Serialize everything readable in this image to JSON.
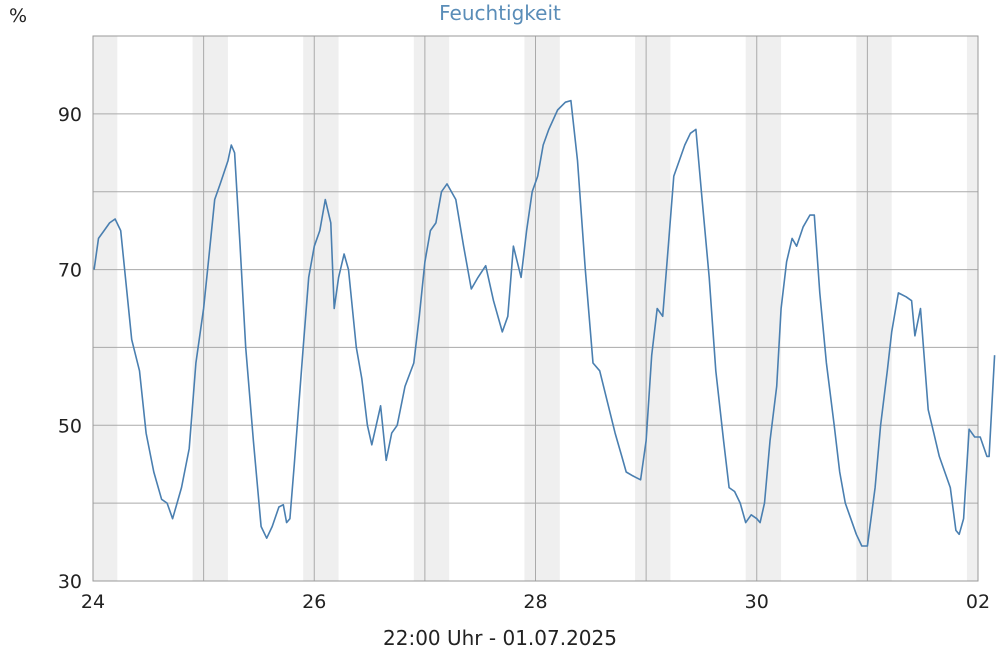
{
  "chart_data": {
    "type": "line",
    "title": "Feuchtigkeit",
    "ylabel": "%",
    "footer": "22:00 Uhr - 01.07.2025",
    "xlim": [
      0,
      8
    ],
    "ylim": [
      30,
      100
    ],
    "x_ticks": [
      {
        "value": 0,
        "label": "24"
      },
      {
        "value": 2,
        "label": "26"
      },
      {
        "value": 4,
        "label": "28"
      },
      {
        "value": 6,
        "label": "30"
      },
      {
        "value": 8,
        "label": "02"
      }
    ],
    "y_ticks": [
      {
        "value": 30,
        "label": "30"
      },
      {
        "value": 50,
        "label": "50"
      },
      {
        "value": 70,
        "label": "70"
      },
      {
        "value": 90,
        "label": "90"
      }
    ],
    "night_bands": [
      [
        0.0,
        0.22
      ],
      [
        0.9,
        1.22
      ],
      [
        1.9,
        2.22
      ],
      [
        2.9,
        3.22
      ],
      [
        3.9,
        4.22
      ],
      [
        4.9,
        5.22
      ],
      [
        5.9,
        6.22
      ],
      [
        6.9,
        7.22
      ],
      [
        7.9,
        8.0
      ]
    ],
    "grid": true,
    "colors": {
      "line": "#4a7fb0",
      "title": "#5a8db8",
      "grid": "#aaaaaa",
      "band": "#efefef"
    },
    "series": [
      {
        "name": "",
        "points": [
          [
            0.01,
            70
          ],
          [
            0.05,
            74
          ],
          [
            0.1,
            75
          ],
          [
            0.15,
            76
          ],
          [
            0.2,
            76.5
          ],
          [
            0.25,
            75
          ],
          [
            0.3,
            68
          ],
          [
            0.35,
            61
          ],
          [
            0.42,
            57
          ],
          [
            0.48,
            49
          ],
          [
            0.55,
            44
          ],
          [
            0.62,
            40.5
          ],
          [
            0.67,
            40
          ],
          [
            0.72,
            38
          ],
          [
            0.8,
            42
          ],
          [
            0.87,
            47
          ],
          [
            0.93,
            58
          ],
          [
            1.0,
            65
          ],
          [
            1.05,
            72
          ],
          [
            1.1,
            79
          ],
          [
            1.15,
            81
          ],
          [
            1.22,
            84
          ],
          [
            1.25,
            86
          ],
          [
            1.28,
            85
          ],
          [
            1.33,
            73
          ],
          [
            1.38,
            60
          ],
          [
            1.45,
            48
          ],
          [
            1.52,
            37
          ],
          [
            1.57,
            35.5
          ],
          [
            1.62,
            37
          ],
          [
            1.68,
            39.5
          ],
          [
            1.72,
            39.8
          ],
          [
            1.75,
            37.5
          ],
          [
            1.78,
            38
          ],
          [
            1.82,
            45
          ],
          [
            1.9,
            60
          ],
          [
            1.95,
            69
          ],
          [
            2.0,
            73
          ],
          [
            2.05,
            75
          ],
          [
            2.1,
            79
          ],
          [
            2.15,
            76
          ],
          [
            2.18,
            65
          ],
          [
            2.22,
            69
          ],
          [
            2.27,
            72
          ],
          [
            2.31,
            70
          ],
          [
            2.38,
            60
          ],
          [
            2.43,
            56
          ],
          [
            2.48,
            50
          ],
          [
            2.52,
            47.5
          ],
          [
            2.6,
            52.5
          ],
          [
            2.65,
            45.5
          ],
          [
            2.7,
            49
          ],
          [
            2.75,
            50
          ],
          [
            2.82,
            55
          ],
          [
            2.9,
            58
          ],
          [
            2.95,
            64
          ],
          [
            3.0,
            71
          ],
          [
            3.05,
            75
          ],
          [
            3.1,
            76
          ],
          [
            3.15,
            80
          ],
          [
            3.2,
            81
          ],
          [
            3.28,
            79
          ],
          [
            3.35,
            73
          ],
          [
            3.42,
            67.5
          ],
          [
            3.48,
            69
          ],
          [
            3.55,
            70.5
          ],
          [
            3.62,
            66
          ],
          [
            3.7,
            62
          ],
          [
            3.75,
            64
          ],
          [
            3.8,
            73
          ],
          [
            3.87,
            69
          ],
          [
            3.92,
            75
          ],
          [
            3.97,
            80
          ],
          [
            4.02,
            82
          ],
          [
            4.07,
            86
          ],
          [
            4.12,
            88
          ],
          [
            4.2,
            90.5
          ],
          [
            4.27,
            91.5
          ],
          [
            4.32,
            91.7
          ],
          [
            4.38,
            84
          ],
          [
            4.45,
            70
          ],
          [
            4.52,
            58
          ],
          [
            4.58,
            57
          ],
          [
            4.65,
            53
          ],
          [
            4.72,
            49
          ],
          [
            4.78,
            46
          ],
          [
            4.82,
            44
          ],
          [
            4.88,
            43.5
          ],
          [
            4.95,
            43
          ],
          [
            5.0,
            48
          ],
          [
            5.05,
            59
          ],
          [
            5.1,
            65
          ],
          [
            5.15,
            64
          ],
          [
            5.2,
            73
          ],
          [
            5.25,
            82
          ],
          [
            5.3,
            84
          ],
          [
            5.35,
            86
          ],
          [
            5.4,
            87.5
          ],
          [
            5.45,
            88
          ],
          [
            5.5,
            80
          ],
          [
            5.57,
            69
          ],
          [
            5.63,
            57
          ],
          [
            5.7,
            48
          ],
          [
            5.75,
            42
          ],
          [
            5.8,
            41.5
          ],
          [
            5.85,
            40
          ],
          [
            5.9,
            37.5
          ],
          [
            5.95,
            38.5
          ],
          [
            6.0,
            38
          ],
          [
            6.03,
            37.5
          ],
          [
            6.07,
            40
          ],
          [
            6.12,
            48
          ],
          [
            6.18,
            55
          ],
          [
            6.22,
            65
          ],
          [
            6.27,
            71
          ],
          [
            6.32,
            74
          ],
          [
            6.36,
            73
          ],
          [
            6.42,
            75.5
          ],
          [
            6.48,
            77
          ],
          [
            6.52,
            77
          ],
          [
            6.57,
            67
          ],
          [
            6.63,
            58
          ],
          [
            6.7,
            50
          ],
          [
            6.75,
            44
          ],
          [
            6.8,
            40
          ],
          [
            6.85,
            38
          ],
          [
            6.9,
            36
          ],
          [
            6.95,
            34.5
          ],
          [
            7.0,
            34.5
          ],
          [
            7.07,
            42
          ],
          [
            7.12,
            50
          ],
          [
            7.18,
            57
          ],
          [
            7.22,
            62
          ],
          [
            7.28,
            67
          ],
          [
            7.35,
            66.5
          ],
          [
            7.4,
            66
          ],
          [
            7.43,
            61.5
          ],
          [
            7.48,
            65
          ],
          [
            7.55,
            52
          ],
          [
            7.6,
            49
          ],
          [
            7.65,
            46
          ],
          [
            7.7,
            44
          ],
          [
            7.75,
            42
          ],
          [
            7.8,
            36.5
          ],
          [
            7.83,
            36
          ],
          [
            7.87,
            38
          ],
          [
            7.92,
            49.5
          ],
          [
            7.97,
            48.5
          ],
          [
            8.02,
            48.5
          ],
          [
            8.08,
            46
          ],
          [
            8.1,
            46
          ],
          [
            8.15,
            59
          ]
        ]
      }
    ]
  }
}
